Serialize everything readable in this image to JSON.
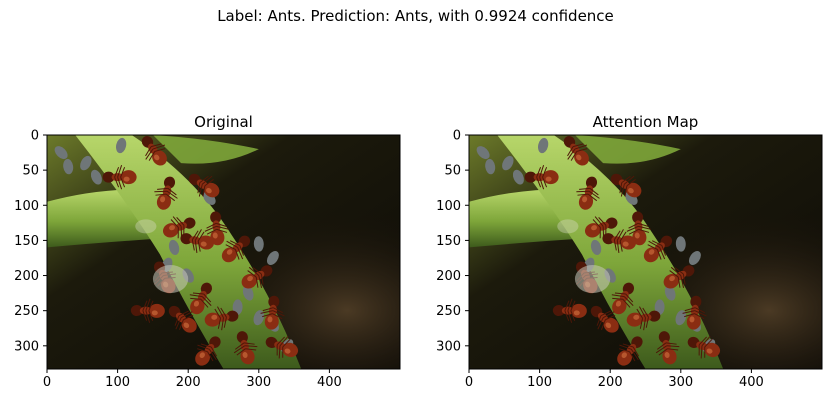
{
  "figure": {
    "suptitle": "Label: Ants. Prediction: Ants, with 0.9924 confidence"
  },
  "chart_data": [
    {
      "type": "image",
      "title": "Original",
      "content": "macro photo of red ants tending grey aphids on a green plant stem, dark background",
      "xlim": [
        0,
        500
      ],
      "ylim": [
        333,
        0
      ],
      "xticks": [
        0,
        100,
        200,
        300,
        400
      ],
      "yticks": [
        0,
        50,
        100,
        150,
        200,
        250,
        300
      ],
      "xlabel": "",
      "ylabel": ""
    },
    {
      "type": "image",
      "title": "Attention Map",
      "content": "same ant photo rendered with attention overlay (visually near-identical)",
      "xlim": [
        0,
        500
      ],
      "ylim": [
        333,
        0
      ],
      "xticks": [
        0,
        100,
        200,
        300,
        400
      ],
      "yticks": [
        0,
        50,
        100,
        150,
        200,
        250,
        300
      ],
      "xlabel": "",
      "ylabel": ""
    }
  ],
  "colors": {
    "background": "#ffffff",
    "axis": "#000000",
    "stem": "#7ea63a",
    "stem_light": "#b7d66a",
    "ant": "#8a2d12",
    "ant_dark": "#4e1708",
    "aphid": "#6f7678",
    "dark_bg": "#0c0a06"
  }
}
